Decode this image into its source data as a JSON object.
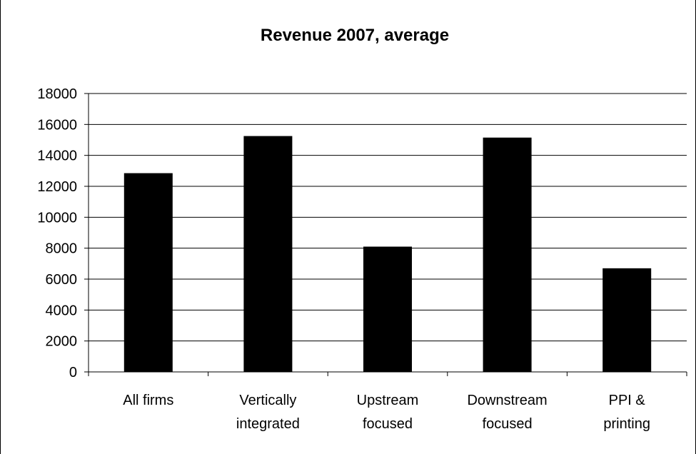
{
  "chart_data": {
    "type": "bar",
    "title": "Revenue 2007, average",
    "categories": [
      [
        "All firms"
      ],
      [
        "Vertically",
        "integrated"
      ],
      [
        "Upstream",
        "focused"
      ],
      [
        "Downstream",
        "focused"
      ],
      [
        "PPI &",
        "printing"
      ]
    ],
    "values": [
      12850,
      15250,
      8100,
      15150,
      6700
    ],
    "ylim": [
      0,
      18000
    ],
    "yticks": [
      0,
      2000,
      4000,
      6000,
      8000,
      10000,
      12000,
      14000,
      16000,
      18000
    ],
    "grid": true,
    "bar_color": "#000000"
  }
}
